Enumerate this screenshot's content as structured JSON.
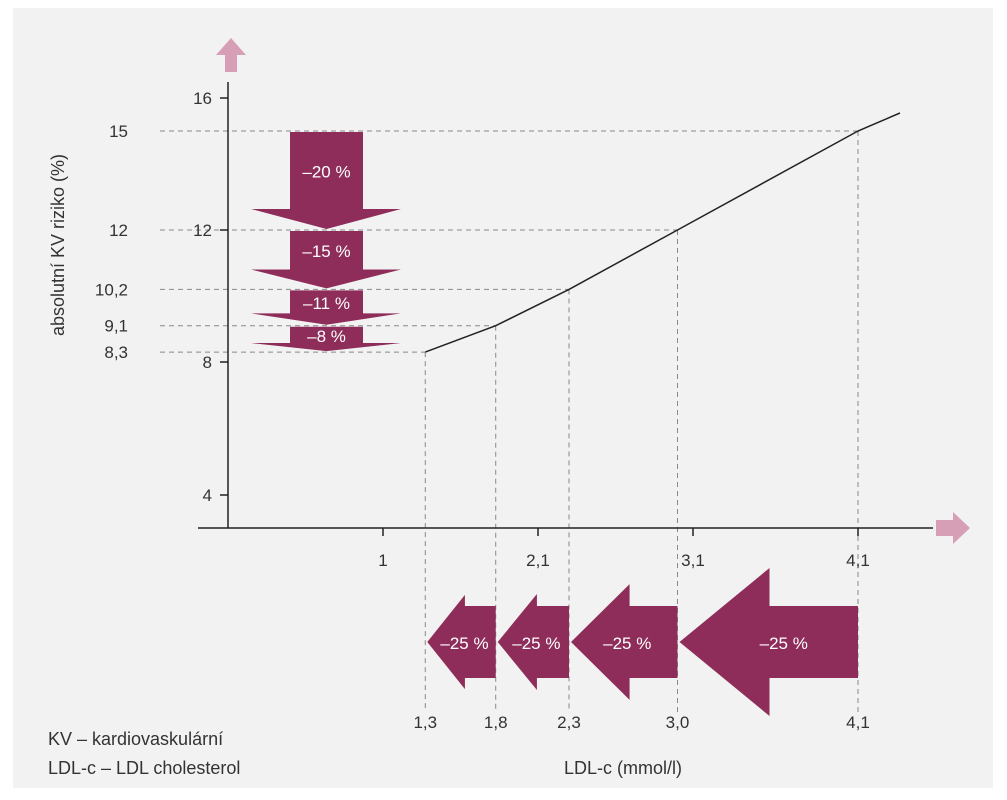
{
  "chart_data": {
    "type": "line",
    "ylabel": "absolutní KV riziko (%)",
    "xlabel": "LDL-c (mmol/l)",
    "y_axis_ticks": [
      "4",
      "8",
      "12",
      "16"
    ],
    "x_axis_ticks": [
      "1",
      "2,1",
      "3,1",
      "4,1"
    ],
    "series": [
      {
        "x": [
          1.3,
          1.8,
          2.3,
          3.0,
          4.1
        ],
        "y": [
          8.3,
          9.1,
          10.2,
          12,
          15
        ]
      }
    ],
    "risk_point_labels": [
      "15",
      "12",
      "10,2",
      "9,1",
      "8,3"
    ],
    "ldl_point_labels": [
      "1,3",
      "1,8",
      "2,3",
      "3,0",
      "4,1"
    ],
    "risk_reductions": [
      "–20 %",
      "–15 %",
      "–11 %",
      "–8 %"
    ],
    "ldl_reductions": [
      "–25 %",
      "–25 %",
      "–25 %",
      "–25 %"
    ]
  },
  "legend": {
    "line1": "KV – kardiovaskulární",
    "line2": "LDL-c – LDL cholesterol"
  },
  "colors": {
    "arrow": "#8e2d59",
    "axis_arrow": "#d79fb5",
    "line": "#222222"
  }
}
